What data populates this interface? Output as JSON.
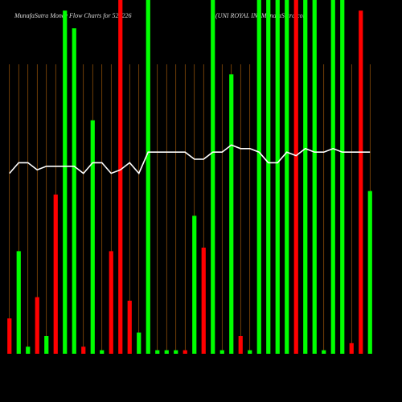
{
  "chart_data": {
    "type": "bar",
    "title": "MunafaSutra  Money Flow  Charts for 521226",
    "subtitle": "(UNI ROYAL  IN) MunafaSutra.com",
    "categories": [
      null,
      null,
      null,
      null,
      null,
      null,
      null,
      null,
      null,
      null,
      null,
      null,
      null,
      null,
      null,
      null,
      null,
      null,
      null,
      null,
      null,
      null,
      null,
      null,
      null,
      null,
      null,
      null,
      null,
      null,
      null,
      null,
      null,
      null,
      null,
      null,
      null,
      null,
      null,
      null
    ],
    "values": [
      10,
      29,
      2,
      16,
      5,
      45,
      97,
      92,
      2,
      66,
      1,
      29,
      100,
      15,
      6,
      100,
      1,
      1,
      1,
      1,
      39,
      30,
      100,
      1,
      79,
      5,
      1,
      100,
      100,
      100,
      100,
      100,
      100,
      100,
      1,
      100,
      100,
      3,
      97,
      46
    ],
    "colors": [
      "#ff0000",
      "#00ff00",
      "#00ff00",
      "#ff0000",
      "#00ff00",
      "#ff0000",
      "#00ff00",
      "#00ff00",
      "#ff0000",
      "#00ff00",
      "#00ff00",
      "#ff0000",
      "#ff0000",
      "#ff0000",
      "#00ff00",
      "#00ff00",
      "#00ff00",
      "#00ff00",
      "#00ff00",
      "#ff0000",
      "#00ff00",
      "#ff0000",
      "#00ff00",
      "#00ff00",
      "#00ff00",
      "#ff0000",
      "#00ff00",
      "#00ff00",
      "#00ff00",
      "#00ff00",
      "#00ff00",
      "#ff0000",
      "#00ff00",
      "#00ff00",
      "#00ff00",
      "#00ff00",
      "#00ff00",
      "#ff0000",
      "#ff0000",
      "#00ff00"
    ],
    "line": {
      "color": "#ffffff",
      "values": [
        51,
        54,
        54,
        52,
        53,
        53,
        53,
        53,
        51,
        54,
        54,
        51,
        52,
        54,
        51,
        57,
        57,
        57,
        57,
        57,
        55,
        55,
        57,
        57,
        59,
        58,
        58,
        57,
        54,
        54,
        57,
        56,
        58,
        57,
        57,
        58,
        57,
        57,
        57,
        57
      ]
    },
    "ylim": [
      0,
      100
    ],
    "grid_color": "#b8660b"
  }
}
